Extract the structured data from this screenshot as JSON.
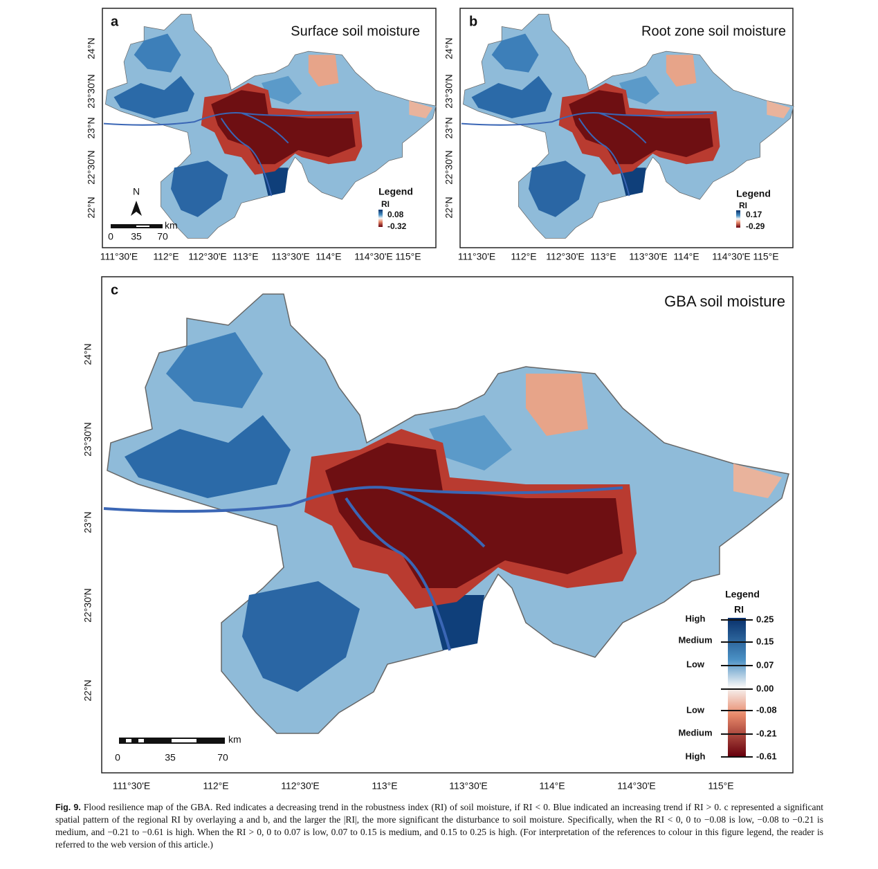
{
  "panels": [
    {
      "label": "a",
      "title": "Surface soil moisture",
      "lat_labels": [
        "24°N",
        "23°30'N",
        "23°N",
        "22°30'N",
        "22°N"
      ],
      "lon_labels": [
        "111°30'E",
        "112°E",
        "112°30'E",
        "113°E",
        "113°30'E",
        "114°E",
        "114°30'E",
        "115°E"
      ],
      "legend": {
        "title": "Legend",
        "variable": "RI",
        "max": "0.08",
        "min": "-0.32"
      },
      "north": "N",
      "scale_bar": {
        "unit": "km",
        "ticks": [
          "0",
          "35",
          "70"
        ]
      }
    },
    {
      "label": "b",
      "title": "Root zone soil moisture",
      "lat_labels": [
        "24°N",
        "23°30'N",
        "23°N",
        "22°30'N",
        "22°N"
      ],
      "lon_labels": [
        "111°30'E",
        "112°E",
        "112°30'E",
        "113°E",
        "113°30'E",
        "114°E",
        "114°30'E",
        "115°E"
      ],
      "legend": {
        "title": "Legend",
        "variable": "RI",
        "max": "0.17",
        "min": "-0.29"
      }
    },
    {
      "label": "c",
      "title": "GBA soil moisture",
      "lat_labels": [
        "24°N",
        "23°30'N",
        "23°N",
        "22°30'N",
        "22°N"
      ],
      "lon_labels": [
        "111°30'E",
        "112°E",
        "112°30'E",
        "113°E",
        "113°30'E",
        "114°E",
        "114°30'E",
        "115°E"
      ],
      "legend": {
        "title": "Legend",
        "variable": "RI",
        "classes": [
          "High",
          "Medium",
          "Low",
          "Low",
          "Medium",
          "High"
        ],
        "values": [
          "0.25",
          "0.15",
          "0.07",
          "0.00",
          "-0.08",
          "-0.21",
          "-0.61"
        ]
      },
      "scale_bar": {
        "unit": "km",
        "ticks": [
          "0",
          "35",
          "70"
        ]
      }
    }
  ],
  "caption": {
    "label": "Fig. 9.",
    "text": "Flood resilience map of the GBA. Red indicates a decreasing trend in the robustness index (RI) of soil moisture, if RI < 0. Blue indicated an increasing trend if RI > 0. c represented a significant spatial pattern of the regional RI by overlaying a and b, and the larger the |RI|, the more significant the disturbance to soil moisture. Specifically, when the RI < 0, 0 to −0.08 is low, −0.08 to −0.21 is medium, and −0.21 to −0.61 is high. When the RI > 0, 0 to 0.07 is low, 0.07 to 0.15 is medium, and 0.15 to 0.25 is high. (For interpretation of the references to colour in this figure legend, the reader is referred to the web version of this article.)"
  }
}
